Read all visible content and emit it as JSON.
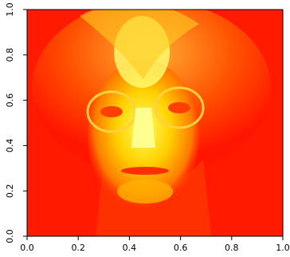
{
  "chart_data": {
    "type": "image",
    "xlim": [
      0,
      1
    ],
    "ylim": [
      0,
      1
    ],
    "xticks": [
      {
        "value": 0,
        "label": "0.0"
      },
      {
        "value": 0.2,
        "label": "0.2"
      },
      {
        "value": 0.4,
        "label": "0.4"
      },
      {
        "value": 0.6,
        "label": "0.6"
      },
      {
        "value": 0.8,
        "label": "0.8"
      },
      {
        "value": 1,
        "label": "1.0"
      }
    ],
    "yticks": [
      {
        "value": 0,
        "label": "0.0"
      },
      {
        "value": 0.2,
        "label": "0.2"
      },
      {
        "value": 0.4,
        "label": "0.4"
      },
      {
        "value": 0.6,
        "label": "0.6"
      },
      {
        "value": 0.8,
        "label": "0.8"
      },
      {
        "value": 1,
        "label": "1.0"
      }
    ]
  }
}
